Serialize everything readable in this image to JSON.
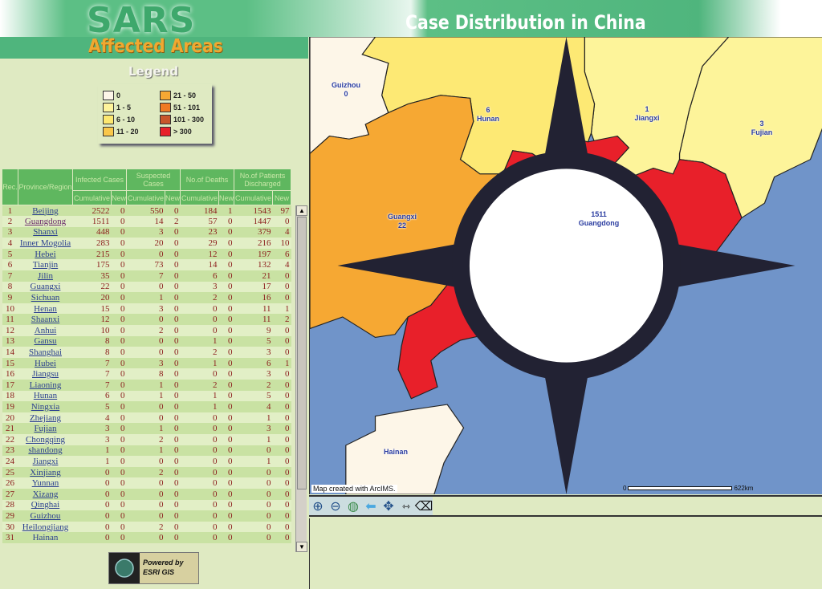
{
  "header": {
    "logo": "SARS",
    "subtitle": "Affected Areas",
    "title": "Case Distribution in China"
  },
  "legend": {
    "title": "Legend",
    "items": [
      {
        "label": "0",
        "color": "#fdf6e8"
      },
      {
        "label": "1 - 5",
        "color": "#fef49c"
      },
      {
        "label": "6 - 10",
        "color": "#fde870"
      },
      {
        "label": "11 - 20",
        "color": "#f9c74a"
      },
      {
        "label": "21 - 50",
        "color": "#f6a833"
      },
      {
        "label": "51 - 101",
        "color": "#f07a24"
      },
      {
        "label": "101 - 300",
        "color": "#c8552a"
      },
      {
        "label": "> 300",
        "color": "#e8202a"
      }
    ]
  },
  "table": {
    "headers": {
      "rec": "Rec.",
      "province": "Province/Region",
      "infected": "Infected Cases",
      "suspected": "Suspected Cases",
      "deaths": "No.of Deaths",
      "discharged": "No.of Patients Discharged",
      "cumulative": "Cumulative",
      "new": "New"
    },
    "rows": [
      [
        "1",
        "Beijing",
        "2522",
        "0",
        "550",
        "0",
        "184",
        "1",
        "1543",
        "97"
      ],
      [
        "2",
        "Guangdong",
        "1511",
        "0",
        "14",
        "2",
        "57",
        "0",
        "1447",
        "0"
      ],
      [
        "3",
        "Shanxi",
        "448",
        "0",
        "3",
        "0",
        "23",
        "0",
        "379",
        "4"
      ],
      [
        "4",
        "Inner Mogolia",
        "283",
        "0",
        "20",
        "0",
        "29",
        "0",
        "216",
        "10"
      ],
      [
        "5",
        "Hebei",
        "215",
        "0",
        "0",
        "0",
        "12",
        "0",
        "197",
        "6"
      ],
      [
        "6",
        "Tianjin",
        "175",
        "0",
        "73",
        "0",
        "14",
        "0",
        "132",
        "4"
      ],
      [
        "7",
        "Jilin",
        "35",
        "0",
        "7",
        "0",
        "6",
        "0",
        "21",
        "0"
      ],
      [
        "8",
        "Guangxi",
        "22",
        "0",
        "0",
        "0",
        "3",
        "0",
        "17",
        "0"
      ],
      [
        "9",
        "Sichuan",
        "20",
        "0",
        "1",
        "0",
        "2",
        "0",
        "16",
        "0"
      ],
      [
        "10",
        "Henan",
        "15",
        "0",
        "3",
        "0",
        "0",
        "0",
        "11",
        "1"
      ],
      [
        "11",
        "Shaanxi",
        "12",
        "0",
        "0",
        "0",
        "0",
        "0",
        "11",
        "2"
      ],
      [
        "12",
        "Anhui",
        "10",
        "0",
        "2",
        "0",
        "0",
        "0",
        "9",
        "0"
      ],
      [
        "13",
        "Gansu",
        "8",
        "0",
        "0",
        "0",
        "1",
        "0",
        "5",
        "0"
      ],
      [
        "14",
        "Shanghai",
        "8",
        "0",
        "0",
        "0",
        "2",
        "0",
        "3",
        "0"
      ],
      [
        "15",
        "Hubei",
        "7",
        "0",
        "3",
        "0",
        "1",
        "0",
        "6",
        "1"
      ],
      [
        "16",
        "Jiangsu",
        "7",
        "0",
        "8",
        "0",
        "0",
        "0",
        "3",
        "0"
      ],
      [
        "17",
        "Liaoning",
        "7",
        "0",
        "1",
        "0",
        "2",
        "0",
        "2",
        "0"
      ],
      [
        "18",
        "Hunan",
        "6",
        "0",
        "1",
        "0",
        "1",
        "0",
        "5",
        "0"
      ],
      [
        "19",
        "Ningxia",
        "5",
        "0",
        "0",
        "0",
        "1",
        "0",
        "4",
        "0"
      ],
      [
        "20",
        "Zhejiang",
        "4",
        "0",
        "0",
        "0",
        "0",
        "0",
        "1",
        "0"
      ],
      [
        "21",
        "Fujian",
        "3",
        "0",
        "1",
        "0",
        "0",
        "0",
        "3",
        "0"
      ],
      [
        "22",
        "Chongqing",
        "3",
        "0",
        "2",
        "0",
        "0",
        "0",
        "1",
        "0"
      ],
      [
        "23",
        "shandong",
        "1",
        "0",
        "1",
        "0",
        "0",
        "0",
        "0",
        "0"
      ],
      [
        "24",
        "Jiangxi",
        "1",
        "0",
        "0",
        "0",
        "0",
        "0",
        "1",
        "0"
      ],
      [
        "25",
        "Xinjiang",
        "0",
        "0",
        "2",
        "0",
        "0",
        "0",
        "0",
        "0"
      ],
      [
        "26",
        "Yunnan",
        "0",
        "0",
        "0",
        "0",
        "0",
        "0",
        "0",
        "0"
      ],
      [
        "27",
        "Xizang",
        "0",
        "0",
        "0",
        "0",
        "0",
        "0",
        "0",
        "0"
      ],
      [
        "28",
        "Qinghai",
        "0",
        "0",
        "0",
        "0",
        "0",
        "0",
        "0",
        "0"
      ],
      [
        "29",
        "Guizhou",
        "0",
        "0",
        "0",
        "0",
        "0",
        "0",
        "0",
        "0"
      ],
      [
        "30",
        "Heilongjiang",
        "0",
        "0",
        "2",
        "0",
        "0",
        "0",
        "0",
        "0"
      ],
      [
        "31",
        "Hainan",
        "0",
        "0",
        "0",
        "0",
        "0",
        "0",
        "0",
        "0"
      ]
    ]
  },
  "esri": {
    "line1": "Powered by",
    "line2": "ESRI GIS"
  },
  "map": {
    "labels": {
      "guizhou": [
        "Guizhou",
        "0"
      ],
      "hunan": [
        "6",
        "Hunan"
      ],
      "jiangxi": [
        "1",
        "Jiangxi"
      ],
      "fujian": [
        "3",
        "Fujian"
      ],
      "guangxi": [
        "Guangxi",
        "22"
      ],
      "guangdong": [
        "1511",
        "Guangdong"
      ],
      "hainan": [
        "Hainan"
      ]
    },
    "credit": "Map created with ArcIMS.",
    "scale_start": "0",
    "scale_end": "622km"
  },
  "toolbar": [
    "zoom-in",
    "zoom-out",
    "full-extent",
    "back",
    "pan",
    "measure",
    "clear"
  ]
}
